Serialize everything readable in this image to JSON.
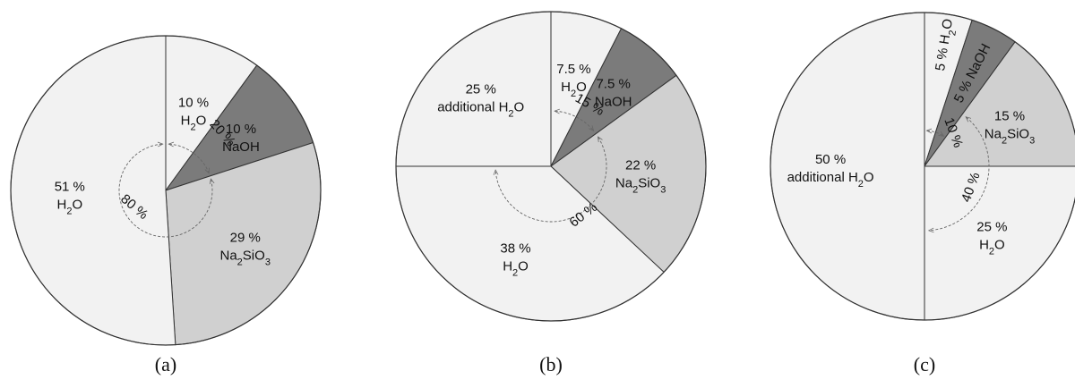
{
  "colors": {
    "light": "#f2f2f2",
    "mid": "#d0d0d0",
    "dark": "#7b7b7b",
    "stroke": "#333333",
    "arc": "#666666"
  },
  "chart_data": [
    {
      "type": "pie",
      "caption": "(a)",
      "start_direction": "up",
      "slices": [
        {
          "pct": 10,
          "percent_label": "10 %",
          "component": "H₂O",
          "shade": "light"
        },
        {
          "pct": 10,
          "percent_label": "10 %",
          "component": "NaOH",
          "shade": "dark"
        },
        {
          "pct": 29,
          "percent_label": "29 %",
          "component": "Na₂SiO₃",
          "shade": "mid"
        },
        {
          "pct": 51,
          "percent_label": "51 %",
          "component": "H₂O",
          "shade": "light"
        }
      ],
      "angle_annotations": [
        {
          "text": "20 %",
          "from_pct": 0,
          "to_pct": 20
        },
        {
          "text": "80 %",
          "from_pct": 20,
          "to_pct": 100
        }
      ]
    },
    {
      "type": "pie",
      "caption": "(b)",
      "start_direction": "up",
      "slices": [
        {
          "pct": 7.5,
          "percent_label": "7.5 %",
          "component": "H₂O",
          "shade": "light"
        },
        {
          "pct": 7.5,
          "percent_label": "7.5 %",
          "component": "NaOH",
          "shade": "dark"
        },
        {
          "pct": 22,
          "percent_label": "22 %",
          "component": "Na₂SiO₃",
          "shade": "mid"
        },
        {
          "pct": 38,
          "percent_label": "38 %",
          "component": "H₂O",
          "shade": "light"
        },
        {
          "pct": 25,
          "percent_label": "25 %",
          "component": "additional H₂O",
          "shade": "light"
        }
      ],
      "angle_annotations": [
        {
          "text": "15 %",
          "from_pct": 0,
          "to_pct": 15
        },
        {
          "text": "60 %",
          "from_pct": 15,
          "to_pct": 75
        }
      ]
    },
    {
      "type": "pie",
      "caption": "(c)",
      "start_direction": "up",
      "slices": [
        {
          "pct": 5,
          "percent_label": "5 %",
          "component": "H₂O",
          "shade": "light"
        },
        {
          "pct": 5,
          "percent_label": "5 %",
          "component": "NaOH",
          "shade": "dark"
        },
        {
          "pct": 15,
          "percent_label": "15 %",
          "component": "Na₂SiO₃",
          "shade": "mid"
        },
        {
          "pct": 25,
          "percent_label": "25 %",
          "component": "H₂O",
          "shade": "light"
        },
        {
          "pct": 50,
          "percent_label": "50 %",
          "component": "additional H₂O",
          "shade": "light"
        }
      ],
      "angle_annotations": [
        {
          "text": "10 %",
          "from_pct": 0,
          "to_pct": 10
        },
        {
          "text": "40 %",
          "from_pct": 10,
          "to_pct": 50
        }
      ]
    }
  ]
}
